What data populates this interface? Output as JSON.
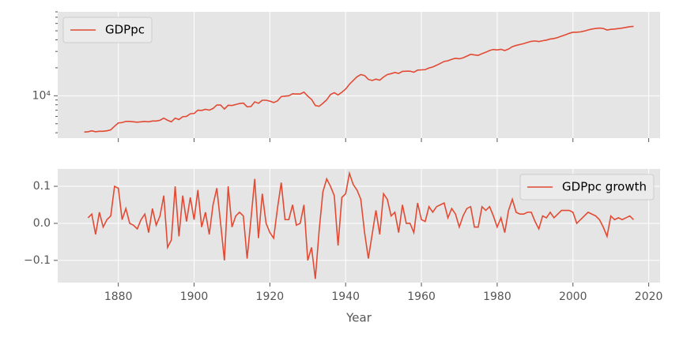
{
  "chart_data": [
    {
      "type": "line",
      "ylog": true,
      "grid": true,
      "legend": "upper left",
      "xtick_labels": false,
      "xlim": [
        1864,
        2023
      ],
      "xticks": [
        1880,
        1900,
        1920,
        1940,
        1960,
        1980,
        2000,
        2020
      ],
      "ylim": [
        3500,
        80000
      ],
      "yticks": [
        {
          "value": 10000,
          "label": "10⁴"
        }
      ],
      "minor_yticks": [
        4000,
        5000,
        6000,
        7000,
        8000,
        9000,
        20000,
        30000,
        40000,
        50000,
        60000,
        70000,
        80000
      ],
      "x": [
        1871,
        1872,
        1873,
        1874,
        1875,
        1876,
        1877,
        1878,
        1879,
        1880,
        1881,
        1882,
        1883,
        1884,
        1885,
        1886,
        1887,
        1888,
        1889,
        1890,
        1891,
        1892,
        1893,
        1894,
        1895,
        1896,
        1897,
        1898,
        1899,
        1900,
        1901,
        1902,
        1903,
        1904,
        1905,
        1906,
        1907,
        1908,
        1909,
        1910,
        1911,
        1912,
        1913,
        1914,
        1915,
        1916,
        1917,
        1918,
        1919,
        1920,
        1921,
        1922,
        1923,
        1924,
        1925,
        1926,
        1927,
        1928,
        1929,
        1930,
        1931,
        1932,
        1933,
        1934,
        1935,
        1936,
        1937,
        1938,
        1939,
        1940,
        1941,
        1942,
        1943,
        1944,
        1945,
        1946,
        1947,
        1948,
        1949,
        1950,
        1951,
        1952,
        1953,
        1954,
        1955,
        1956,
        1957,
        1958,
        1959,
        1960,
        1961,
        1962,
        1963,
        1964,
        1965,
        1966,
        1967,
        1968,
        1969,
        1970,
        1971,
        1972,
        1973,
        1974,
        1975,
        1976,
        1977,
        1978,
        1979,
        1980,
        1981,
        1982,
        1983,
        1984,
        1985,
        1986,
        1987,
        1988,
        1989,
        1990,
        1991,
        1992,
        1993,
        1994,
        1995,
        1996,
        1997,
        1998,
        1999,
        2000,
        2001,
        2002,
        2003,
        2004,
        2005,
        2006,
        2007,
        2008,
        2009,
        2010,
        2011,
        2012,
        2013,
        2014,
        2015,
        2016
      ],
      "series": [
        {
          "name": "GDPpc",
          "color": "#E24A33",
          "values": [
            4070,
            4100,
            4200,
            4100,
            4150,
            4150,
            4200,
            4300,
            4700,
            5100,
            5150,
            5300,
            5300,
            5250,
            5200,
            5250,
            5300,
            5250,
            5350,
            5350,
            5450,
            5750,
            5450,
            5250,
            5750,
            5550,
            5950,
            6000,
            6400,
            6450,
            7000,
            6950,
            7150,
            7000,
            7300,
            7950,
            7950,
            7200,
            7900,
            7850,
            8050,
            8250,
            8350,
            7600,
            7650,
            8600,
            8300,
            8950,
            8950,
            8750,
            8450,
            8800,
            9800,
            9900,
            10000,
            10500,
            10450,
            10450,
            10950,
            9900,
            9150,
            7850,
            7700,
            8300,
            9050,
            10300,
            10800,
            10200,
            10900,
            11800,
            13300,
            14600,
            16000,
            16900,
            16500,
            15000,
            14600,
            15100,
            14700,
            15900,
            16900,
            17300,
            17800,
            17400,
            18300,
            18400,
            18400,
            17900,
            18900,
            19000,
            19100,
            19900,
            20400,
            21300,
            22300,
            23400,
            23800,
            24700,
            25300,
            25000,
            25600,
            26700,
            27900,
            27500,
            27200,
            28400,
            29400,
            30700,
            31500,
            31100,
            31600,
            30700,
            31800,
            33800,
            34800,
            35600,
            36400,
            37500,
            38500,
            38900,
            38300,
            39100,
            39700,
            40800,
            41300,
            42400,
            43800,
            45300,
            46900,
            48300,
            48300,
            48700,
            49700,
            51000,
            52200,
            53000,
            53500,
            53000,
            51000,
            51800,
            52200,
            52900,
            53500,
            54400,
            55400,
            55800
          ]
        }
      ]
    },
    {
      "type": "line",
      "ylog": false,
      "grid": true,
      "legend": "upper right",
      "xtick_labels": true,
      "xlabel": "Year",
      "xlim": [
        1864,
        2023
      ],
      "xticks": [
        1880,
        1900,
        1920,
        1940,
        1960,
        1980,
        2000,
        2020
      ],
      "ylim": [
        -0.16,
        0.147
      ],
      "yticks": [
        {
          "value": -0.1,
          "label": "−0.1"
        },
        {
          "value": 0.0,
          "label": "0.0"
        },
        0.1
      ],
      "x": [
        1872,
        1873,
        1874,
        1875,
        1876,
        1877,
        1878,
        1879,
        1880,
        1881,
        1882,
        1883,
        1884,
        1885,
        1886,
        1887,
        1888,
        1889,
        1890,
        1891,
        1892,
        1893,
        1894,
        1895,
        1896,
        1897,
        1898,
        1899,
        1900,
        1901,
        1902,
        1903,
        1904,
        1905,
        1906,
        1907,
        1908,
        1909,
        1910,
        1911,
        1912,
        1913,
        1914,
        1915,
        1916,
        1917,
        1918,
        1919,
        1920,
        1921,
        1922,
        1923,
        1924,
        1925,
        1926,
        1927,
        1928,
        1929,
        1930,
        1931,
        1932,
        1933,
        1934,
        1935,
        1936,
        1937,
        1938,
        1939,
        1940,
        1941,
        1942,
        1943,
        1944,
        1945,
        1946,
        1947,
        1948,
        1949,
        1950,
        1951,
        1952,
        1953,
        1954,
        1955,
        1956,
        1957,
        1958,
        1959,
        1960,
        1961,
        1962,
        1963,
        1964,
        1965,
        1966,
        1967,
        1968,
        1969,
        1970,
        1971,
        1972,
        1973,
        1974,
        1975,
        1976,
        1977,
        1978,
        1979,
        1980,
        1981,
        1982,
        1983,
        1984,
        1985,
        1986,
        1987,
        1988,
        1989,
        1990,
        1991,
        1992,
        1993,
        1994,
        1995,
        1996,
        1997,
        1998,
        1999,
        2000,
        2001,
        2002,
        2003,
        2004,
        2005,
        2006,
        2007,
        2008,
        2009,
        2010,
        2011,
        2012,
        2013,
        2014,
        2015,
        2016
      ],
      "series": [
        {
          "name": "GDPpc growth",
          "color": "#E24A33",
          "values": [
            0.015,
            0.025,
            -0.03,
            0.03,
            -0.01,
            0.01,
            0.02,
            0.1,
            0.095,
            0.01,
            0.04,
            0.0,
            -0.005,
            -0.015,
            0.01,
            0.025,
            -0.025,
            0.04,
            -0.005,
            0.02,
            0.075,
            -0.065,
            -0.045,
            0.1,
            -0.035,
            0.075,
            0.005,
            0.07,
            0.01,
            0.09,
            -0.01,
            0.03,
            -0.03,
            0.05,
            0.095,
            0.0,
            -0.1,
            0.1,
            -0.01,
            0.02,
            0.03,
            0.02,
            -0.095,
            0.01,
            0.12,
            -0.04,
            0.08,
            0.0,
            -0.025,
            -0.04,
            0.04,
            0.11,
            0.01,
            0.01,
            0.05,
            -0.005,
            0.0,
            0.05,
            -0.1,
            -0.065,
            -0.15,
            -0.02,
            0.085,
            0.12,
            0.1,
            0.075,
            -0.06,
            0.07,
            0.08,
            0.135,
            0.105,
            0.09,
            0.065,
            -0.025,
            -0.095,
            -0.03,
            0.035,
            -0.03,
            0.08,
            0.065,
            0.02,
            0.03,
            -0.025,
            0.05,
            0.0,
            0.0,
            -0.025,
            0.055,
            0.01,
            0.005,
            0.045,
            0.03,
            0.045,
            0.05,
            0.055,
            0.015,
            0.04,
            0.025,
            -0.01,
            0.02,
            0.04,
            0.045,
            -0.01,
            -0.01,
            0.045,
            0.035,
            0.045,
            0.02,
            -0.01,
            0.015,
            -0.025,
            0.035,
            0.065,
            0.03,
            0.025,
            0.025,
            0.03,
            0.03,
            0.005,
            -0.015,
            0.02,
            0.015,
            0.03,
            0.015,
            0.025,
            0.035,
            0.035,
            0.035,
            0.03,
            0.0,
            0.01,
            0.02,
            0.03,
            0.025,
            0.02,
            0.01,
            -0.01,
            -0.035,
            0.02,
            0.01,
            0.015,
            0.01,
            0.015,
            0.02,
            0.01
          ]
        }
      ]
    }
  ]
}
